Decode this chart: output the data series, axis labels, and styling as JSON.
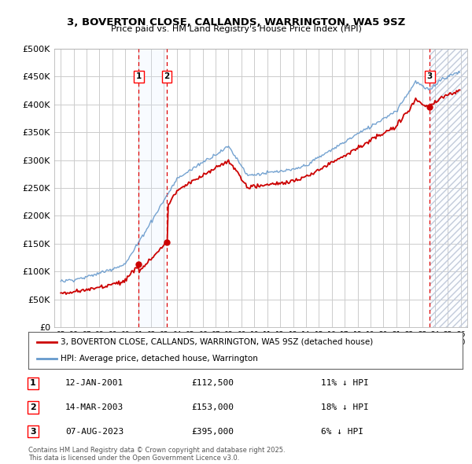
{
  "title": "3, BOVERTON CLOSE, CALLANDS, WARRINGTON, WA5 9SZ",
  "subtitle": "Price paid vs. HM Land Registry's House Price Index (HPI)",
  "legend_label_red": "3, BOVERTON CLOSE, CALLANDS, WARRINGTON, WA5 9SZ (detached house)",
  "legend_label_blue": "HPI: Average price, detached house, Warrington",
  "footer": "Contains HM Land Registry data © Crown copyright and database right 2025.\nThis data is licensed under the Open Government Licence v3.0.",
  "transactions": [
    {
      "num": 1,
      "date": "12-JAN-2001",
      "price": "£112,500",
      "pct": "11% ↓ HPI",
      "x_year": 2001.04
    },
    {
      "num": 2,
      "date": "14-MAR-2003",
      "price": "£153,000",
      "pct": "18% ↓ HPI",
      "x_year": 2003.21
    },
    {
      "num": 3,
      "date": "07-AUG-2023",
      "price": "£395,000",
      "pct": "6% ↓ HPI",
      "x_year": 2023.6
    }
  ],
  "ylim": [
    0,
    500000
  ],
  "xlim": [
    1994.5,
    2026.5
  ],
  "yticks": [
    0,
    50000,
    100000,
    150000,
    200000,
    250000,
    300000,
    350000,
    400000,
    450000,
    500000
  ],
  "ytick_labels": [
    "£0",
    "£50K",
    "£100K",
    "£150K",
    "£200K",
    "£250K",
    "£300K",
    "£350K",
    "£400K",
    "£450K",
    "£500K"
  ],
  "background_color": "#ffffff",
  "grid_color": "#cccccc",
  "red_color": "#cc0000",
  "blue_color": "#6699cc",
  "hatch_color": "#aaaacc",
  "shade_color": "#ddeeff"
}
